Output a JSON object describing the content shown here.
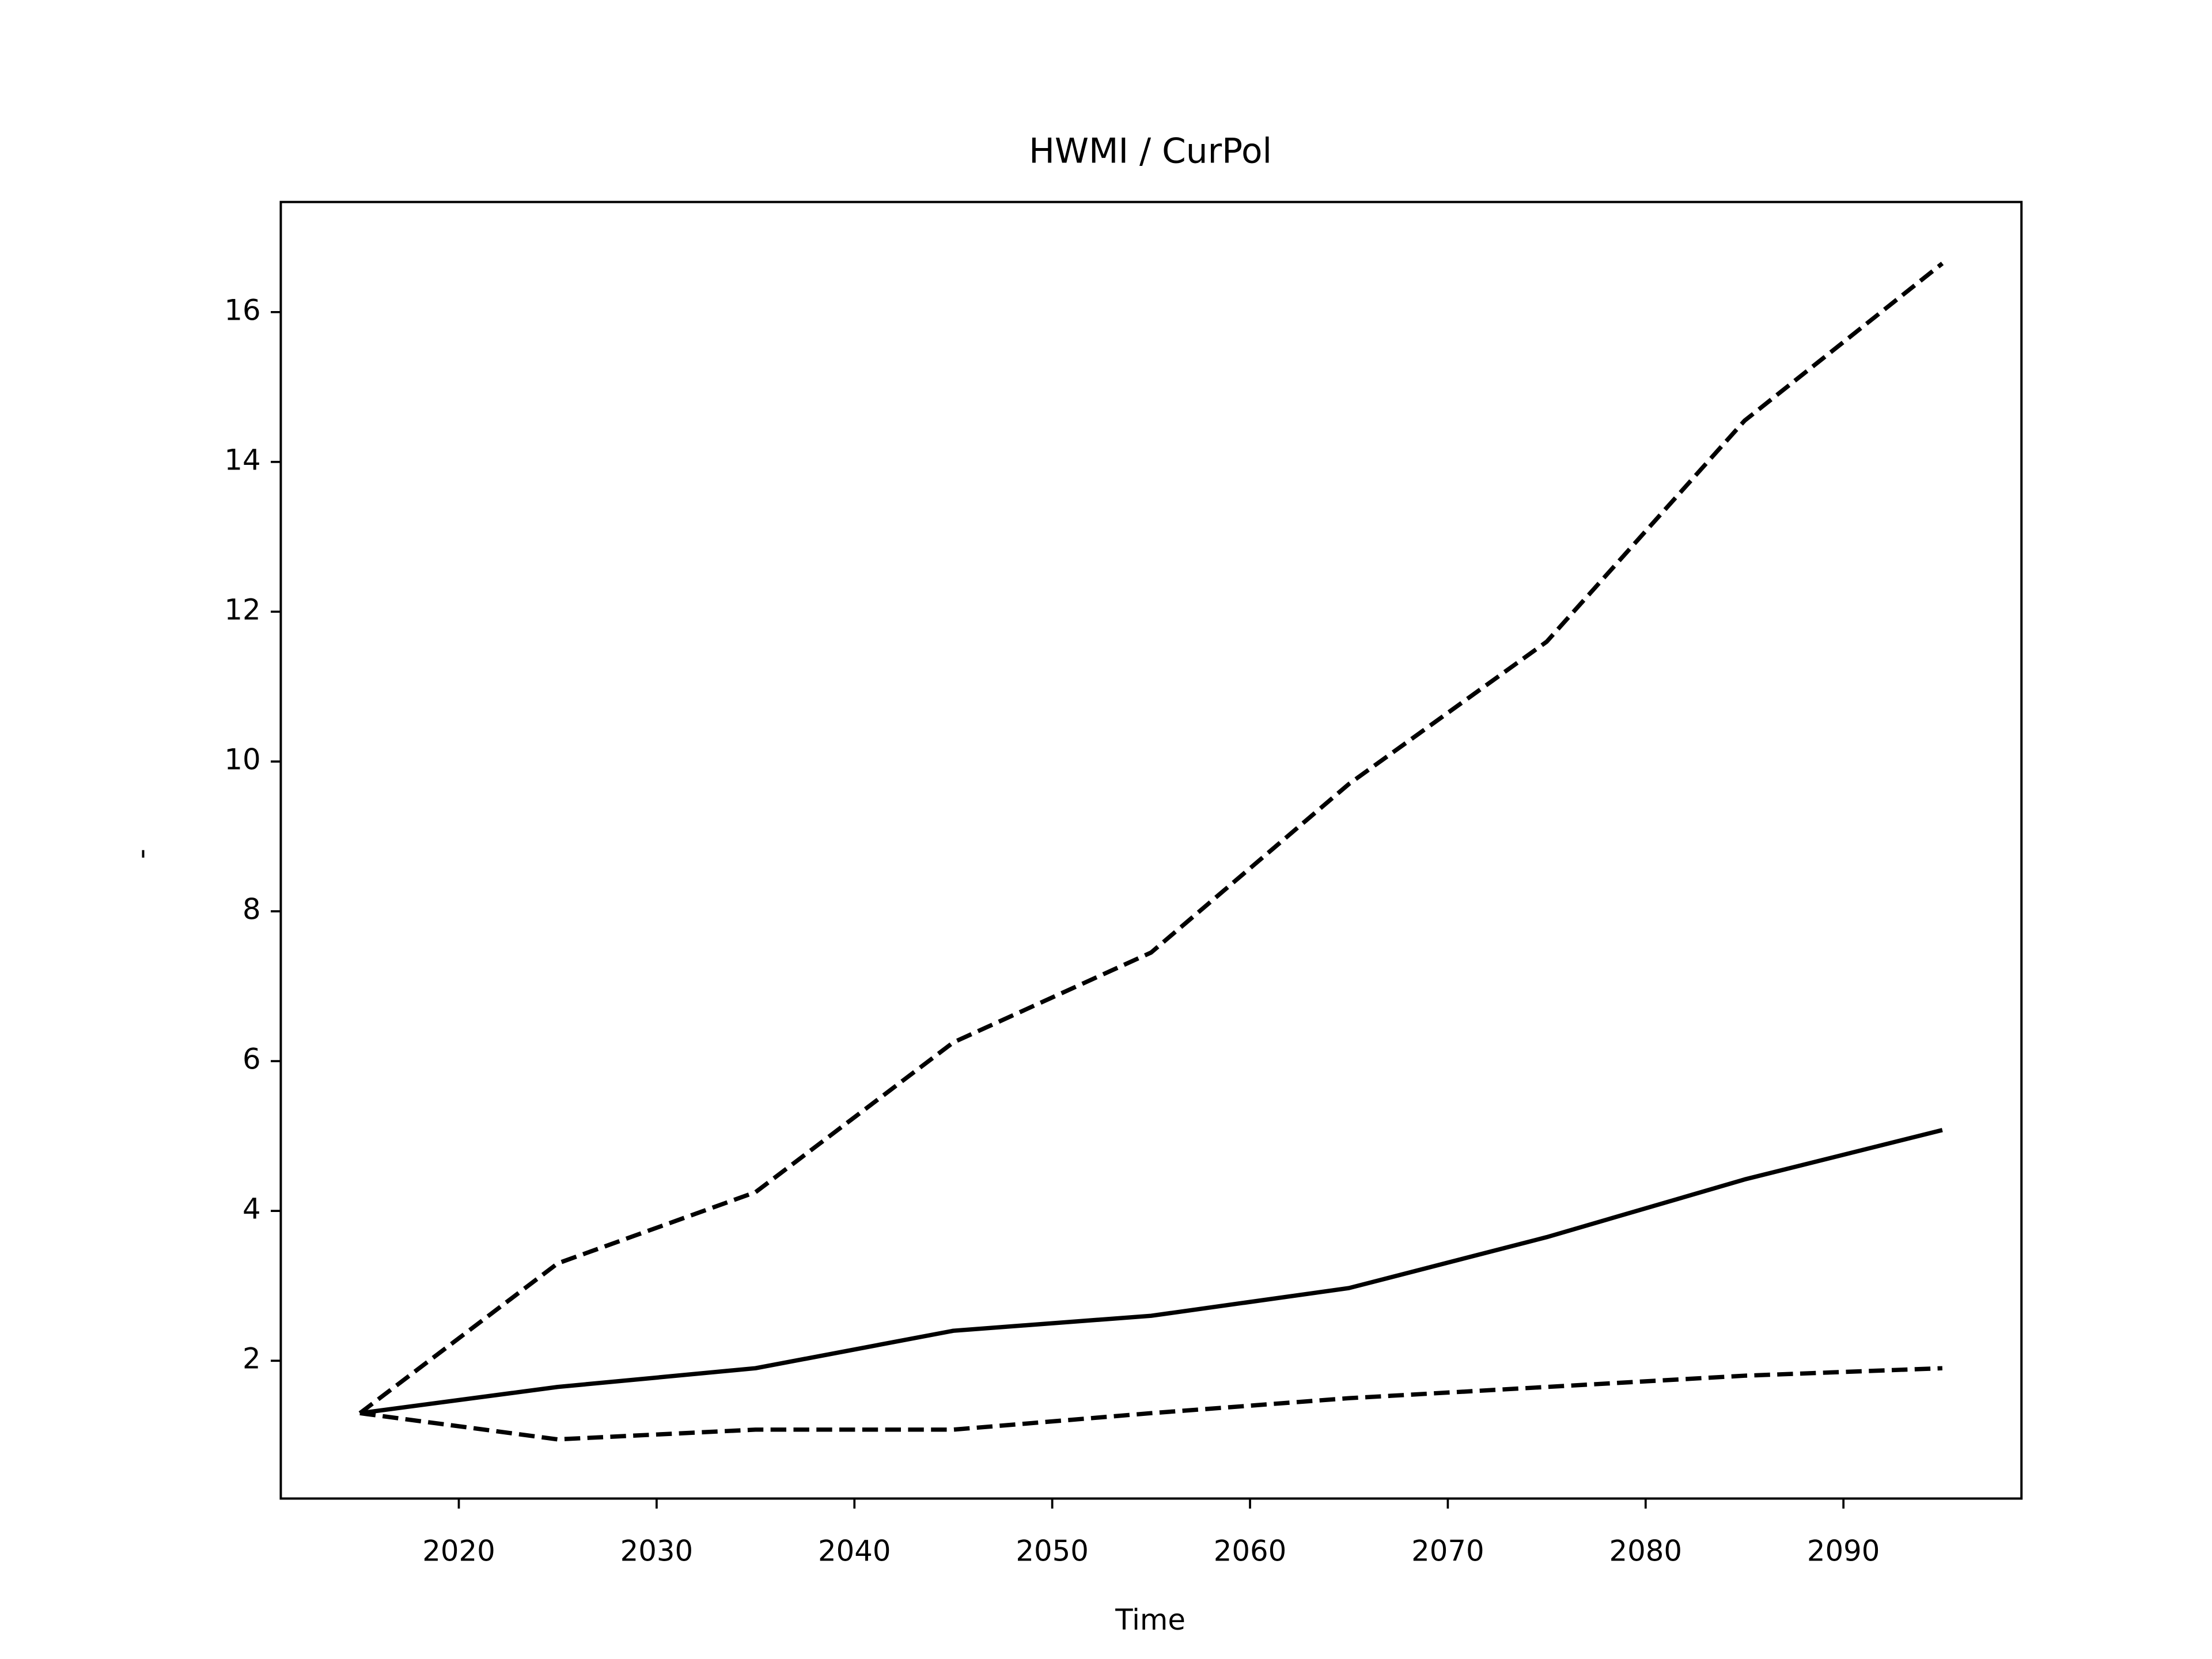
{
  "chart_data": {
    "type": "line",
    "title": "HWMI / CurPol",
    "x_label": "Time",
    "y_label": "-",
    "x": [
      2015,
      2025,
      2035,
      2045,
      2055,
      2065,
      2075,
      2085,
      2095
    ],
    "series": [
      {
        "color": "#000000",
        "dashed": true,
        "values": [
          1.3,
          3.3,
          4.25,
          6.25,
          7.45,
          9.7,
          11.6,
          14.55,
          16.65
        ]
      },
      {
        "color": "#000000",
        "dashed": false,
        "values": [
          1.3,
          1.65,
          1.9,
          2.4,
          2.6,
          2.97,
          3.65,
          4.42,
          5.08
        ]
      },
      {
        "color": "#000000",
        "dashed": true,
        "values": [
          1.3,
          0.95,
          1.08,
          1.08,
          1.3,
          1.5,
          1.65,
          1.8,
          1.9
        ]
      }
    ],
    "xlim": [
      2011,
      2099
    ],
    "xticks": [
      2020,
      2030,
      2040,
      2050,
      2060,
      2070,
      2080,
      2090
    ],
    "ylim": [
      0.16,
      17.47
    ],
    "yticks": [
      2,
      4,
      6,
      8,
      10,
      12,
      14,
      16
    ],
    "grid": false
  }
}
